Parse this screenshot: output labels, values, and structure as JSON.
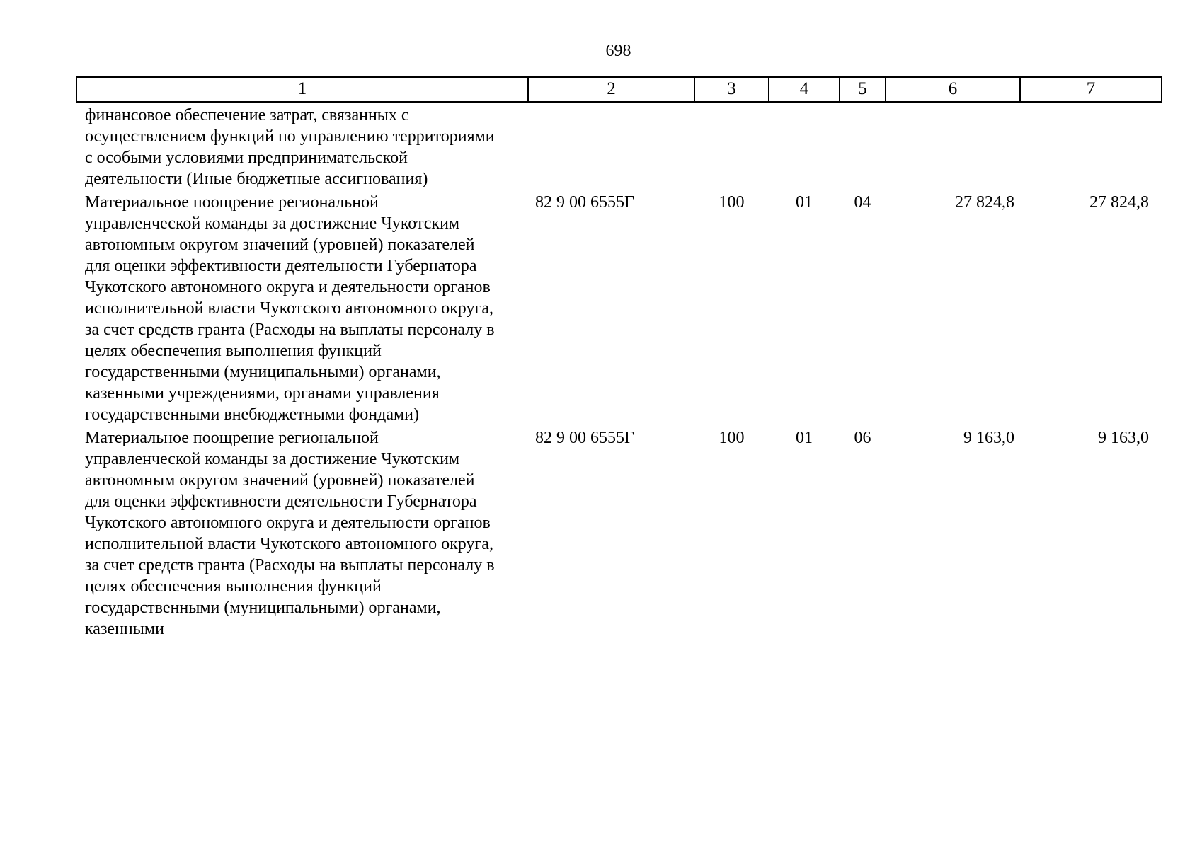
{
  "page": {
    "number": "698"
  },
  "table": {
    "headers": [
      "1",
      "2",
      "3",
      "4",
      "5",
      "6",
      "7"
    ],
    "rows": [
      {
        "name": "финансовое обеспечение затрат, связанных с осуществлением функций по управлению территориями с особыми условиями предпринимательской деятельности (Иные бюджетные ассигнования)",
        "values": [
          "",
          "",
          "",
          "",
          "",
          ""
        ]
      },
      {
        "name": "Материальное поощрение региональной управленческой команды за достижение Чукотским автономным округом значений (уровней) показателей для оценки эффективности деятельности Губернатора Чукотского автономного округа и деятельности органов исполнительной власти Чукотского автономного округа, за счет средств гранта (Расходы на выплаты персоналу в целях обеспечения выполнения функций государственными (муниципальными) органами, казенными учреждениями, органами управления государственными внебюджетными фондами)",
        "values": [
          "82 9 00 6555Г",
          "100",
          "01",
          "04",
          "27 824,8",
          "27 824,8"
        ]
      },
      {
        "name": "Материальное поощрение региональной управленческой команды за достижение Чукотским автономным округом значений (уровней) показателей для оценки эффективности деятельности Губернатора Чукотского автономного округа и деятельности органов исполнительной власти Чукотского автономного округа, за счет средств гранта (Расходы на выплаты персоналу в целях обеспечения выполнения функций государственными (муниципальными) органами, казенными",
        "values": [
          "82 9 00 6555Г",
          "100",
          "01",
          "06",
          "9 163,0",
          "9 163,0"
        ]
      }
    ]
  }
}
